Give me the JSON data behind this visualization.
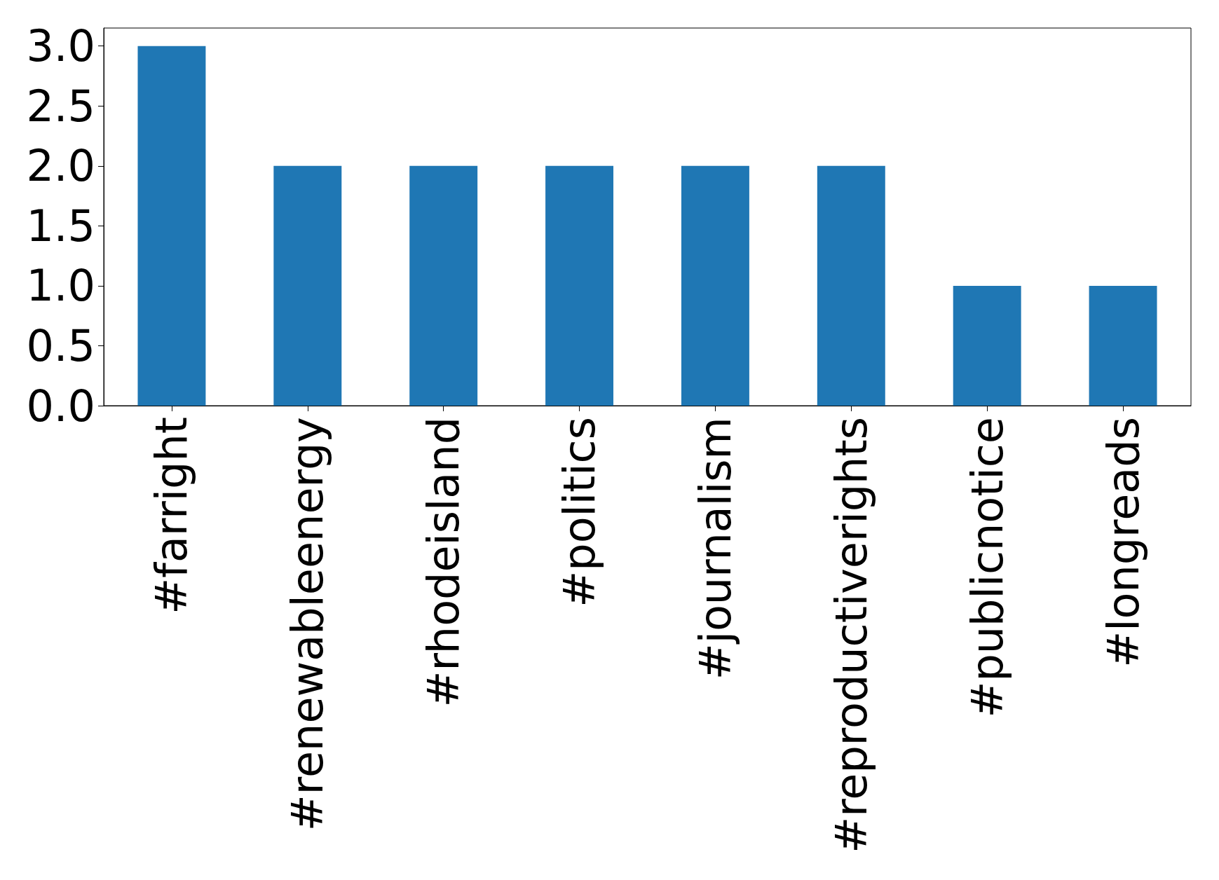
{
  "chart_data": {
    "type": "bar",
    "categories": [
      "#farright",
      "#renewableenergy",
      "#rhodeisland",
      "#politics",
      "#journalism",
      "#reproductiverights",
      "#publicnotice",
      "#longreads"
    ],
    "values": [
      3,
      2,
      2,
      2,
      2,
      2,
      1,
      1
    ],
    "color": "#1f77b4",
    "ylim": [
      0,
      3.15
    ],
    "yticks": [
      {
        "value": 0,
        "label": "0.0"
      },
      {
        "value": 0.5,
        "label": "0.5"
      },
      {
        "value": 1,
        "label": "1.0"
      },
      {
        "value": 1.5,
        "label": "1.5"
      },
      {
        "value": 2,
        "label": "2.0"
      },
      {
        "value": 2.5,
        "label": "2.5"
      },
      {
        "value": 3,
        "label": "3.0"
      }
    ],
    "grid": false
  }
}
